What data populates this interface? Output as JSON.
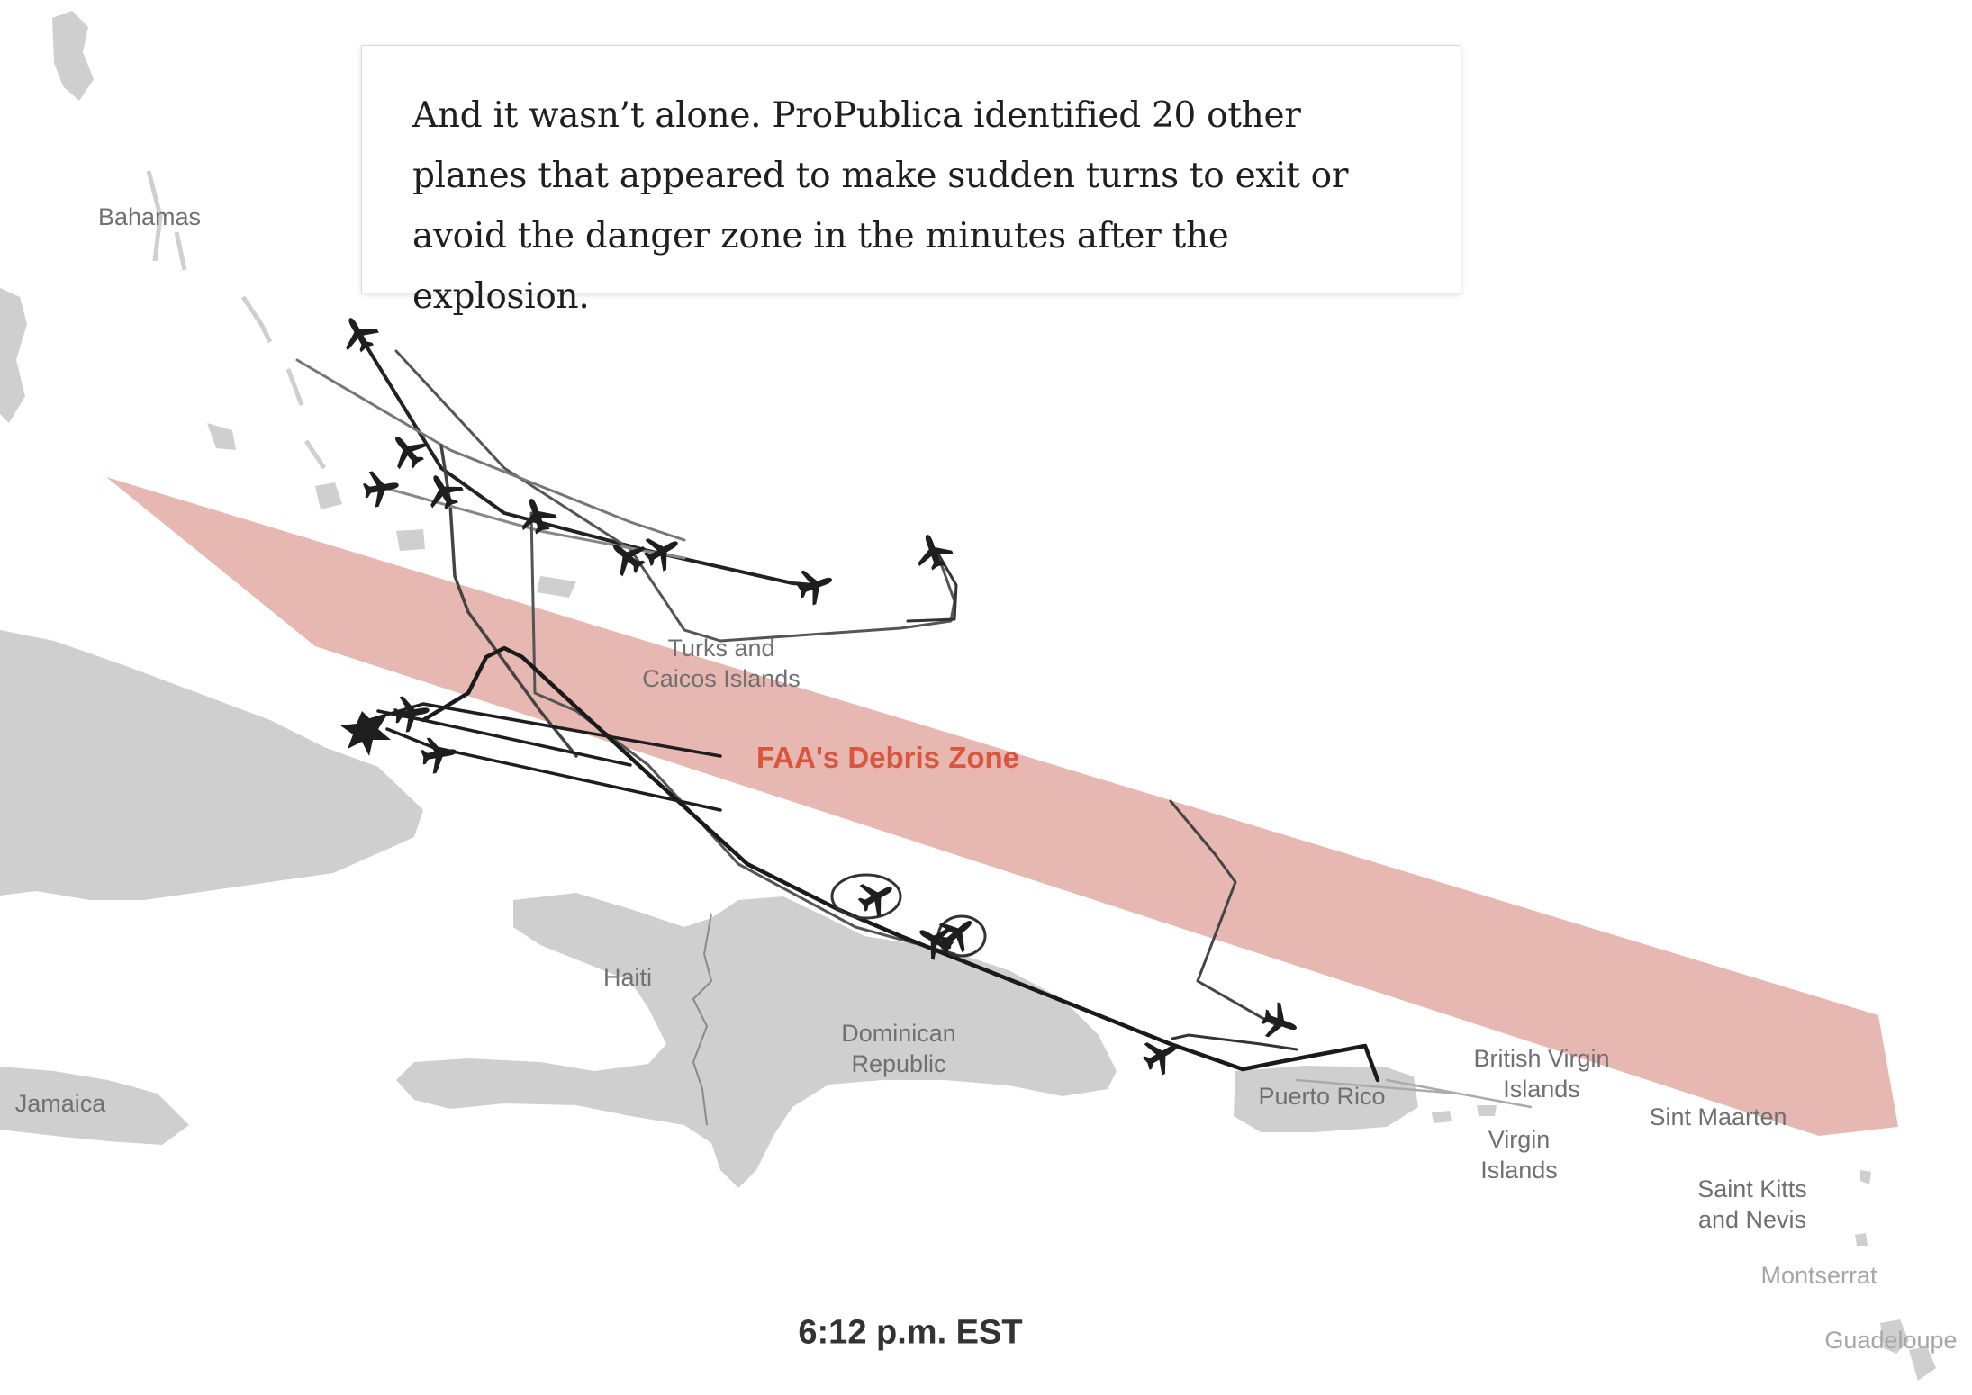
{
  "caption": {
    "text": "And it wasn’t alone. ProPublica identified 20 other planes that appeared to make sudden turns to exit or avoid the danger zone in the minutes after the explosion."
  },
  "timestamp": "6:12 p.m. EST",
  "debris_zone": {
    "label": "FAA's Debris Zone",
    "fill_color": "#e5b2aa",
    "label_color": "#d9553e"
  },
  "labels": {
    "bahamas": "Bahamas",
    "turks_caicos": "Turks and\nCaicos Islands",
    "haiti": "Haiti",
    "dominican_republic": "Dominican\nRepublic",
    "jamaica": "Jamaica",
    "puerto_rico": "Puerto Rico",
    "bvi": "British Virgin\nIslands",
    "virgin_islands": "Virgin\nIslands",
    "sint_maarten": "Sint Maarten",
    "saint_kitts": "Saint Kitts\nand Nevis",
    "montserrat": "Montserrat",
    "guadeloupe": "Guadeloupe"
  },
  "colors": {
    "land": "#cfcfcf",
    "border": "#8a8a8a",
    "track": "#222222",
    "caption_border": "#d9d9d9"
  },
  "icons": {
    "plane": "airplane-icon",
    "explosion": "explosion-icon"
  }
}
